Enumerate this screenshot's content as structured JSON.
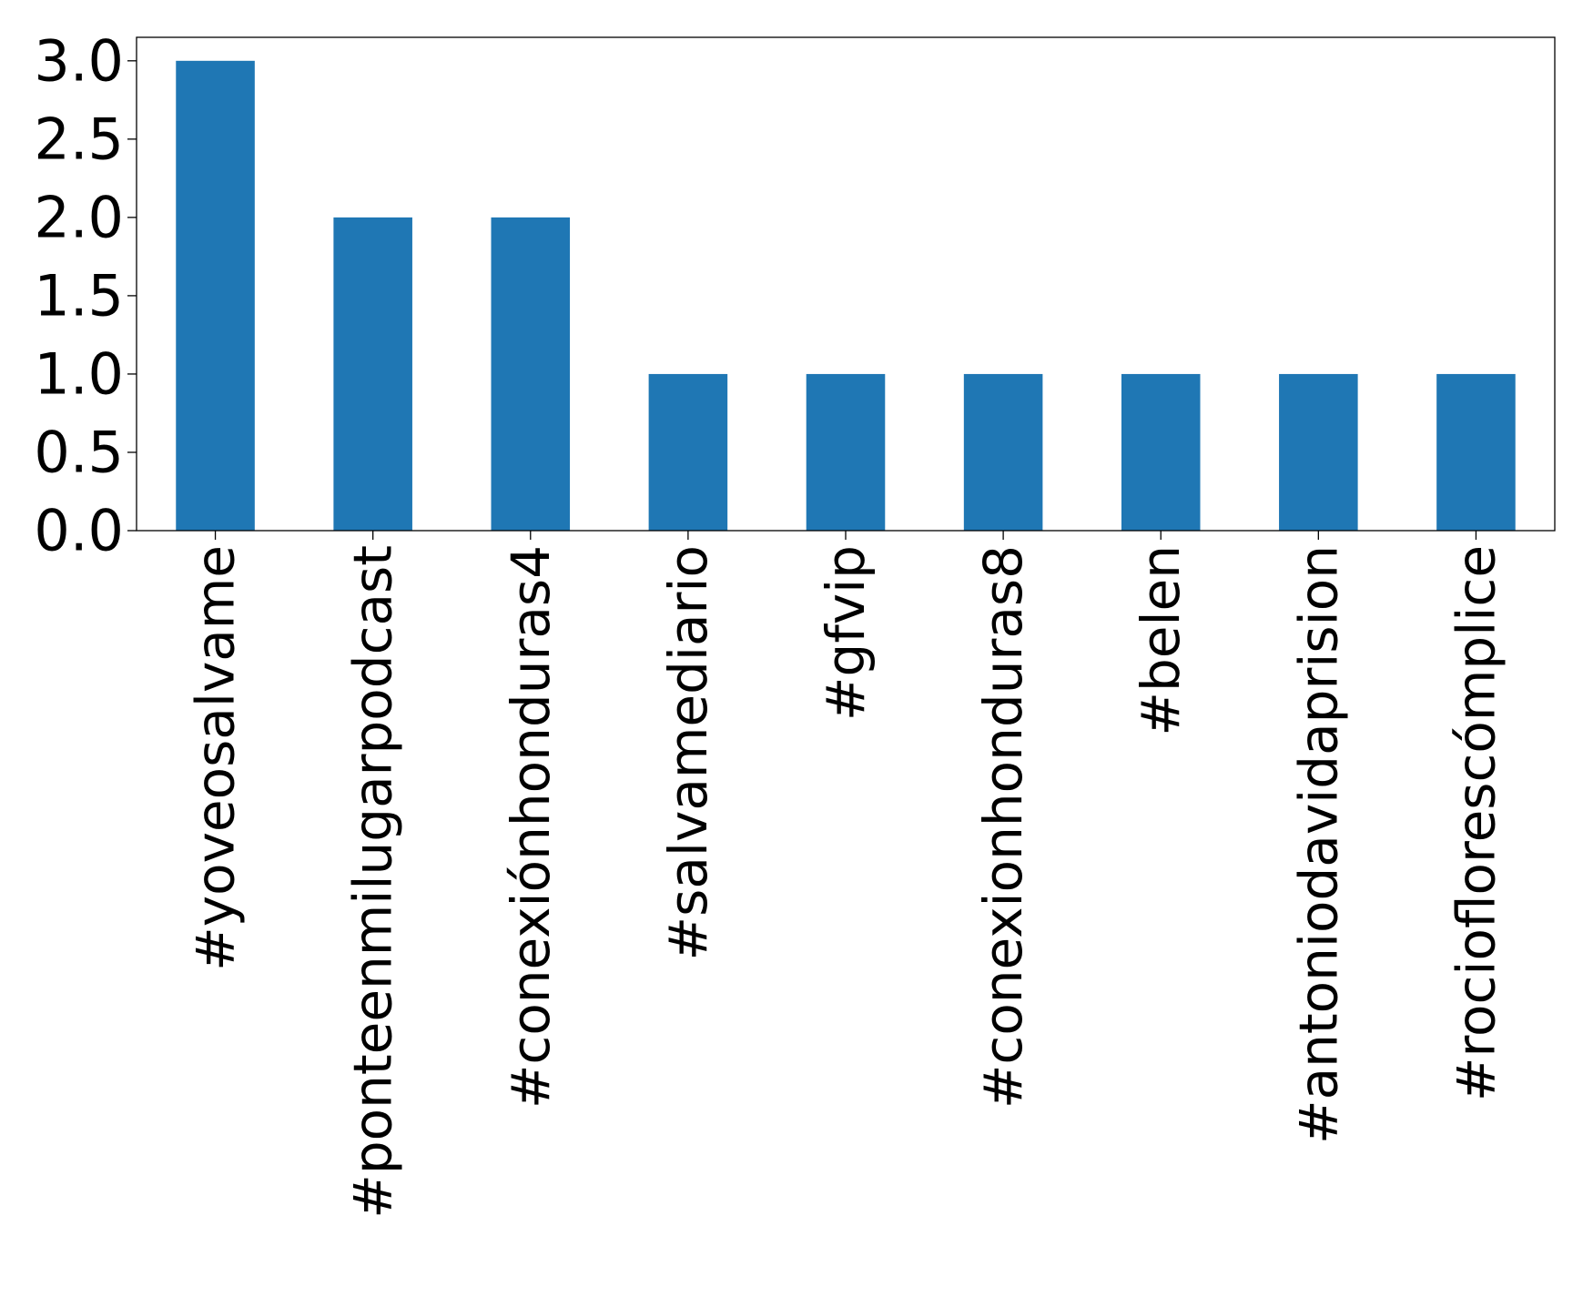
{
  "chart_data": {
    "type": "bar",
    "categories": [
      "#yoveosalvame",
      "#ponteenmilugarpodcast",
      "#conexiónhonduras4",
      "#salvamediario",
      "#gfvip",
      "#conexionhonduras8",
      "#belen",
      "#antoniodavidaprision",
      "#rocioflorescómplice"
    ],
    "values": [
      3,
      2,
      2,
      1,
      1,
      1,
      1,
      1,
      1
    ],
    "title": "",
    "xlabel": "",
    "ylabel": "",
    "ylim": [
      0,
      3.15
    ],
    "yticks": [
      0.0,
      0.5,
      1.0,
      1.5,
      2.0,
      2.5,
      3.0
    ],
    "ytick_labels": [
      "0.0",
      "0.5",
      "1.0",
      "1.5",
      "2.0",
      "2.5",
      "3.0"
    ],
    "bar_color": "#1f77b4",
    "grid": false,
    "legend": "none"
  }
}
